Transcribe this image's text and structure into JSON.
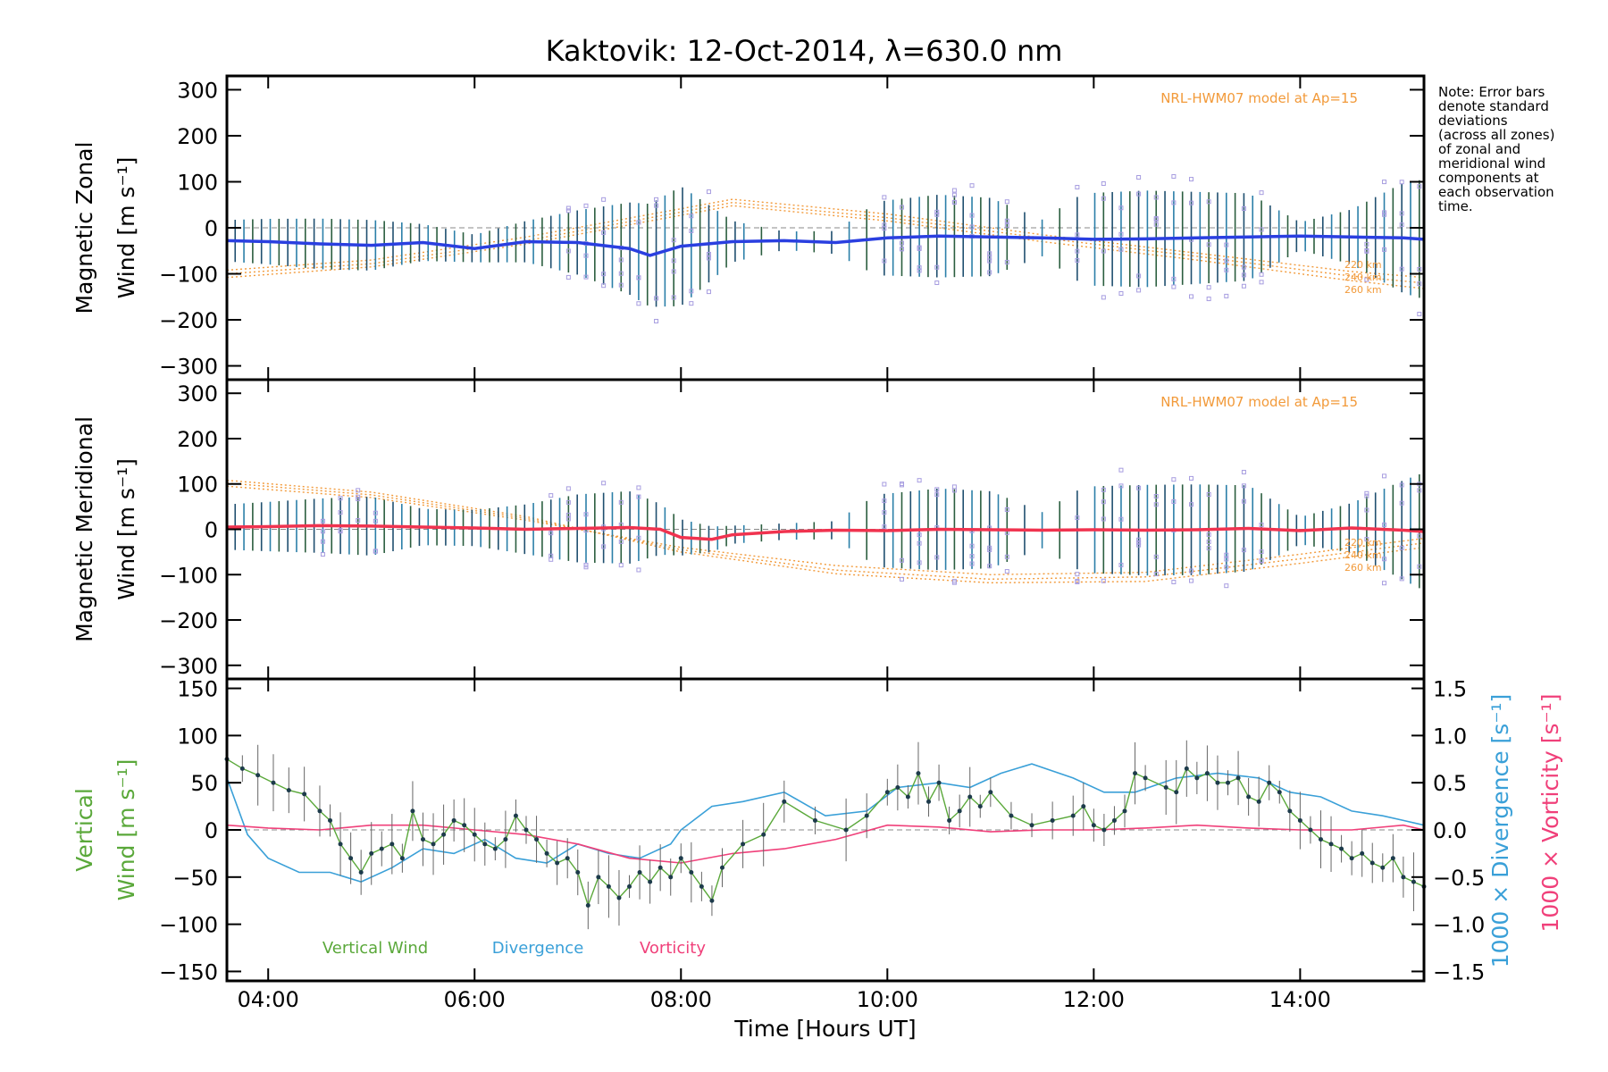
{
  "chart_data": {
    "type": "line",
    "title": "Kaktovik: 12-Oct-2014, λ=630.0 nm",
    "xlabel": "Time [Hours UT]",
    "xlim": [
      3.6,
      15.2
    ],
    "xticks": [
      4,
      6,
      8,
      10,
      12,
      14
    ],
    "xtick_labels": [
      "04:00",
      "06:00",
      "08:00",
      "10:00",
      "12:00",
      "14:00"
    ],
    "note": "Note: Error bars denote standard deviations (across all zones) of zonal and meridional wind components at each observation time.",
    "note_lines": [
      "Note: Error bars",
      "denote standard",
      "deviations",
      "(across all zones)",
      "of zonal and",
      "meridional wind",
      "components at",
      "each observation",
      "time."
    ],
    "panels": [
      {
        "name": "zonal",
        "ylabel_line1": "Magnetic Zonal",
        "ylabel_line2": "Wind [m s⁻¹]",
        "ylim": [
          -330,
          330
        ],
        "yticks": [
          300,
          200,
          100,
          0,
          -100,
          -200,
          -300
        ],
        "ytick_labels": [
          "300",
          "200",
          "100",
          "0",
          "−100",
          "−200",
          "−300"
        ],
        "model_label": "NRL-HWM07 model at Ap=15",
        "altitude_labels": [
          "220 km",
          "240 km",
          "260 km"
        ],
        "series": [
          {
            "color": "#2a3fe0",
            "x": [
              3.6,
              4.0,
              4.5,
              5.0,
              5.5,
              6.0,
              6.5,
              7.0,
              7.5,
              7.7,
              8.0,
              8.5,
              9.0,
              9.5,
              10.0,
              10.5,
              11.0,
              11.5,
              12.0,
              12.5,
              13.0,
              13.5,
              14.0,
              14.5,
              15.0,
              15.2
            ],
            "y": [
              -28,
              -30,
              -35,
              -38,
              -32,
              -45,
              -30,
              -32,
              -45,
              -60,
              -40,
              -30,
              -28,
              -32,
              -22,
              -18,
              -20,
              -22,
              -25,
              -24,
              -22,
              -20,
              -18,
              -20,
              -22,
              -25
            ]
          }
        ],
        "model_curves": [
          {
            "name": "220 km",
            "x": [
              3.6,
              5,
              6.5,
              8.5,
              10,
              11.5,
              13,
              14.5,
              15.2
            ],
            "y": [
              -92,
              -70,
              -20,
              62,
              30,
              -15,
              -55,
              -95,
              -108
            ]
          },
          {
            "name": "240 km",
            "x": [
              3.6,
              5,
              6.5,
              8.5,
              10,
              11.5,
              13,
              14.5,
              15.2
            ],
            "y": [
              -100,
              -78,
              -28,
              55,
              22,
              -22,
              -62,
              -105,
              -120
            ]
          },
          {
            "name": "260 km",
            "x": [
              3.6,
              5,
              6.5,
              8.5,
              10,
              11.5,
              13,
              14.5,
              15.2
            ],
            "y": [
              -108,
              -85,
              -35,
              48,
              15,
              -30,
              -70,
              -115,
              -132
            ]
          }
        ],
        "error_envelope": {
          "x": [
            3.6,
            4.5,
            5.0,
            5.5,
            6.0,
            6.5,
            7.0,
            7.5,
            8.0,
            8.5,
            9.0,
            9.5,
            9.9,
            10.5,
            11.0,
            11.5,
            11.9,
            12.5,
            13.0,
            13.5,
            14.0,
            14.5,
            15.0,
            15.2
          ],
          "sd": [
            45,
            55,
            55,
            40,
            30,
            45,
            70,
            100,
            130,
            45,
            20,
            25,
            80,
            90,
            85,
            40,
            100,
            105,
            100,
            95,
            30,
            60,
            120,
            130
          ]
        }
      },
      {
        "name": "meridional",
        "ylabel_line1": "Magnetic Meridional",
        "ylabel_line2": "Wind [m s⁻¹]",
        "ylim": [
          -330,
          330
        ],
        "yticks": [
          300,
          200,
          100,
          0,
          -100,
          -200,
          -300
        ],
        "ytick_labels": [
          "300",
          "200",
          "100",
          "0",
          "−100",
          "−200",
          "−300"
        ],
        "model_label": "NRL-HWM07 model at Ap=15",
        "altitude_labels": [
          "220 km",
          "240 km",
          "260 km"
        ],
        "series": [
          {
            "color": "#f0334f",
            "x": [
              3.6,
              4.0,
              4.5,
              5.0,
              5.5,
              6.0,
              6.5,
              7.0,
              7.5,
              7.8,
              8.0,
              8.3,
              8.5,
              9.0,
              9.5,
              10.0,
              10.5,
              11.0,
              11.5,
              12.0,
              12.5,
              13.0,
              13.5,
              14.0,
              14.5,
              15.0,
              15.2
            ],
            "y": [
              5,
              6,
              8,
              7,
              5,
              3,
              0,
              2,
              4,
              0,
              -18,
              -22,
              -12,
              -5,
              -2,
              -3,
              0,
              -1,
              -2,
              -1,
              -2,
              -1,
              2,
              -3,
              3,
              -2,
              -5
            ]
          }
        ],
        "model_curves": [
          {
            "name": "220 km",
            "x": [
              3.6,
              5,
              6.5,
              8,
              9.5,
              11,
              12.5,
              14,
              15.2
            ],
            "y": [
              95,
              70,
              20,
              -40,
              -80,
              -100,
              -95,
              -55,
              -20
            ]
          },
          {
            "name": "240 km",
            "x": [
              3.6,
              5,
              6.5,
              8,
              9.5,
              11,
              12.5,
              14,
              15.2
            ],
            "y": [
              102,
              76,
              24,
              -45,
              -90,
              -110,
              -105,
              -65,
              -30
            ]
          },
          {
            "name": "260 km",
            "x": [
              3.6,
              5,
              6.5,
              8,
              9.5,
              11,
              12.5,
              14,
              15.2
            ],
            "y": [
              108,
              82,
              28,
              -50,
              -98,
              -118,
              -115,
              -75,
              -40
            ]
          }
        ],
        "error_envelope": {
          "x": [
            3.6,
            4.5,
            5.0,
            5.5,
            6.0,
            6.5,
            7.0,
            7.5,
            8.0,
            8.5,
            9.0,
            9.5,
            9.9,
            10.5,
            11.0,
            11.5,
            11.9,
            12.5,
            13.0,
            13.5,
            14.0,
            14.5,
            15.0,
            15.2
          ],
          "sd": [
            50,
            60,
            65,
            40,
            40,
            55,
            75,
            80,
            40,
            20,
            18,
            20,
            80,
            90,
            85,
            40,
            95,
            100,
            100,
            95,
            30,
            55,
            110,
            130
          ]
        }
      },
      {
        "name": "vertical",
        "ylabel_line1": "Vertical",
        "ylabel_line2": "Wind [m s⁻¹]",
        "ylim": [
          -160,
          160
        ],
        "yticks": [
          150,
          100,
          50,
          0,
          -50,
          -100,
          -150
        ],
        "ytick_labels": [
          "150",
          "100",
          "50",
          "0",
          "−50",
          "−100",
          "−150"
        ],
        "y2_label_divergence": "1000 × Divergence [s⁻¹]",
        "y2_label_vorticity": "1000 × Vorticity [s⁻¹]",
        "y2lim": [
          -1.6,
          1.6
        ],
        "y2ticks": [
          1.5,
          1.0,
          0.5,
          0.0,
          -0.5,
          -1.0,
          -1.5
        ],
        "y2tick_labels": [
          "1.5",
          "1.0",
          "0.5",
          "0.0",
          "−0.5",
          "−1.0",
          "−1.5"
        ],
        "legend": [
          "Vertical Wind",
          "Divergence",
          "Vorticity"
        ],
        "legend_colors": [
          "#5aa83a",
          "#3aa0d8",
          "#f0407a"
        ],
        "series": [
          {
            "name": "Vertical Wind",
            "color": "#5aa83a",
            "x": [
              3.6,
              3.75,
              3.9,
              4.05,
              4.2,
              4.35,
              4.5,
              4.6,
              4.7,
              4.8,
              4.9,
              5.0,
              5.1,
              5.2,
              5.3,
              5.4,
              5.5,
              5.6,
              5.7,
              5.8,
              5.9,
              6.0,
              6.1,
              6.2,
              6.3,
              6.4,
              6.5,
              6.6,
              6.7,
              6.8,
              6.9,
              7.0,
              7.1,
              7.2,
              7.3,
              7.4,
              7.5,
              7.6,
              7.7,
              7.8,
              7.9,
              8.0,
              8.1,
              8.2,
              8.3,
              8.4,
              8.6,
              8.8,
              9.0,
              9.3,
              9.6,
              9.8,
              10.0,
              10.1,
              10.2,
              10.3,
              10.4,
              10.5,
              10.6,
              10.7,
              10.8,
              10.9,
              11.0,
              11.2,
              11.4,
              11.6,
              11.8,
              11.9,
              12.0,
              12.1,
              12.2,
              12.3,
              12.4,
              12.5,
              12.7,
              12.8,
              12.9,
              13.0,
              13.1,
              13.2,
              13.3,
              13.4,
              13.5,
              13.6,
              13.7,
              13.8,
              13.9,
              14.0,
              14.1,
              14.2,
              14.3,
              14.4,
              14.5,
              14.6,
              14.7,
              14.8,
              14.9,
              15.0,
              15.1,
              15.2
            ],
            "y": [
              75,
              65,
              58,
              50,
              42,
              38,
              20,
              10,
              -15,
              -30,
              -45,
              -25,
              -20,
              -15,
              -30,
              20,
              -10,
              -15,
              -5,
              10,
              5,
              -5,
              -15,
              -20,
              -10,
              15,
              0,
              -10,
              -25,
              -35,
              -30,
              -45,
              -80,
              -50,
              -60,
              -72,
              -60,
              -45,
              -55,
              -40,
              -50,
              -30,
              -45,
              -60,
              -75,
              -40,
              -15,
              -5,
              30,
              10,
              0,
              15,
              40,
              45,
              35,
              60,
              30,
              50,
              10,
              20,
              35,
              25,
              40,
              15,
              5,
              10,
              15,
              25,
              5,
              0,
              10,
              20,
              60,
              55,
              45,
              40,
              65,
              55,
              60,
              50,
              50,
              55,
              35,
              30,
              50,
              40,
              20,
              10,
              0,
              -10,
              -15,
              -20,
              -30,
              -25,
              -35,
              -40,
              -30,
              -50,
              -55,
              -60
            ]
          },
          {
            "name": "Divergence",
            "color": "#3aa0d8",
            "x": [
              3.6,
              3.8,
              4.0,
              4.3,
              4.6,
              4.9,
              5.2,
              5.5,
              5.8,
              6.1,
              6.4,
              6.7,
              7.0,
              7.3,
              7.6,
              7.9,
              8.0,
              8.3,
              8.6,
              9.0,
              9.4,
              9.8,
              10.1,
              10.5,
              10.8,
              11.1,
              11.4,
              11.8,
              12.1,
              12.4,
              12.8,
              13.2,
              13.6,
              13.9,
              14.2,
              14.5,
              14.8,
              15.0,
              15.2
            ],
            "y": [
              0.55,
              -0.05,
              -0.3,
              -0.45,
              -0.45,
              -0.55,
              -0.4,
              -0.2,
              -0.25,
              -0.1,
              -0.3,
              -0.35,
              -0.15,
              -0.25,
              -0.3,
              -0.15,
              0.0,
              0.25,
              0.3,
              0.4,
              0.15,
              0.2,
              0.45,
              0.5,
              0.45,
              0.6,
              0.7,
              0.55,
              0.4,
              0.4,
              0.55,
              0.6,
              0.55,
              0.4,
              0.35,
              0.2,
              0.15,
              0.1,
              0.05
            ]
          },
          {
            "name": "Vorticity",
            "color": "#f0407a",
            "x": [
              3.6,
              4.0,
              4.5,
              5.0,
              5.5,
              6.0,
              6.5,
              7.0,
              7.5,
              8.0,
              8.5,
              9.0,
              9.5,
              10.0,
              10.5,
              11.0,
              11.5,
              12.0,
              12.5,
              13.0,
              13.5,
              14.0,
              14.5,
              15.0,
              15.2
            ],
            "y": [
              0.05,
              0.02,
              0.0,
              0.05,
              0.05,
              0.0,
              -0.05,
              -0.15,
              -0.3,
              -0.35,
              -0.25,
              -0.2,
              -0.1,
              0.05,
              0.03,
              -0.02,
              0.0,
              0.0,
              0.02,
              0.05,
              0.02,
              0.0,
              0.0,
              0.05,
              0.0
            ]
          }
        ]
      }
    ]
  }
}
